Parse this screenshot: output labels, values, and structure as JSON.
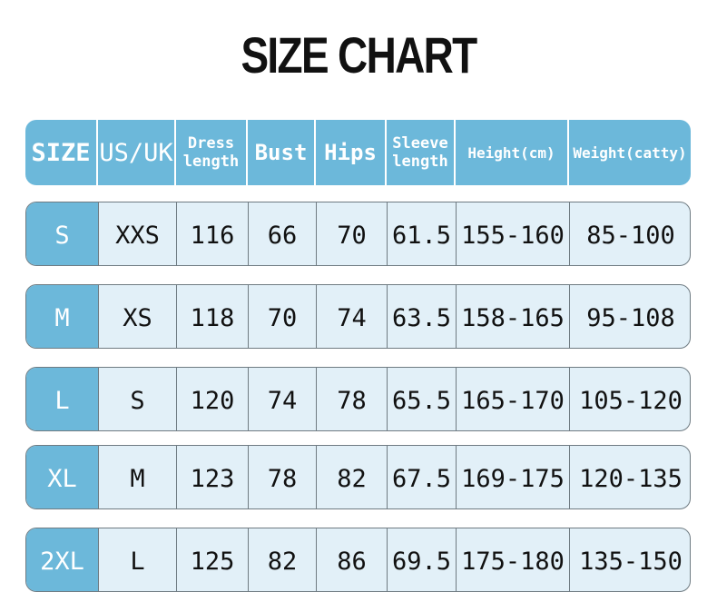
{
  "title": "SIZE CHART",
  "columns": [
    "SIZE",
    "US/UK",
    "Dress length",
    "Bust",
    "Hips",
    "Sleeve length",
    "Height(cm)",
    "Weight(catty)"
  ],
  "rows": [
    [
      "S",
      "XXS",
      "116",
      "66",
      "70",
      "61.5",
      "155-160",
      "85-100"
    ],
    [
      "M",
      "XS",
      "118",
      "70",
      "74",
      "63.5",
      "158-165",
      "95-108"
    ],
    [
      "L",
      "S",
      "120",
      "74",
      "78",
      "65.5",
      "165-170",
      "105-120"
    ],
    [
      "XL",
      "M",
      "123",
      "78",
      "82",
      "67.5",
      "169-175",
      "120-135"
    ],
    [
      "2XL",
      "L",
      "125",
      "82",
      "86",
      "69.5",
      "175-180",
      "135-150"
    ]
  ],
  "colors": {
    "header": "#6cb8da",
    "cell": "#e2f0f8",
    "border": "#6f7b82"
  }
}
